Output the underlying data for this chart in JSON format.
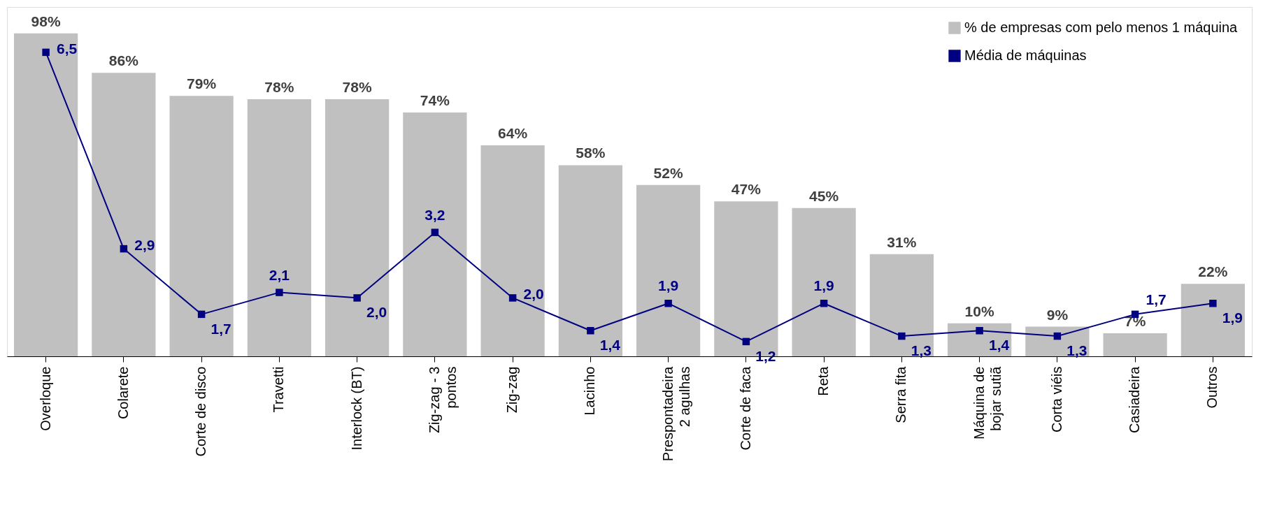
{
  "chart_data": {
    "type": "bar",
    "categories": [
      "Overloque",
      "Colarete",
      "Corte de disco",
      "Travetti",
      "Interlock (BT)",
      "Zig-zag - 3\npontos",
      "Zig-zag",
      "Lacinho",
      "Prespontadeira\n2 agulhas",
      "Corte de faca",
      "Reta",
      "Serra fita",
      "Máquina de\nbojar sutiã",
      "Corta viéis",
      "Casiadeira",
      "Outros"
    ],
    "series": [
      {
        "name": "% de empresas com pelo menos 1 máquina",
        "color": "#c0c0c0",
        "values": [
          98,
          86,
          79,
          78,
          78,
          74,
          64,
          58,
          52,
          47,
          45,
          31,
          10,
          9,
          7,
          22
        ],
        "value_labels": [
          "98%",
          "86%",
          "79%",
          "78%",
          "78%",
          "74%",
          "64%",
          "58%",
          "52%",
          "47%",
          "45%",
          "31%",
          "10%",
          "9%",
          "7%",
          "22%"
        ]
      },
      {
        "name": "Média de máquinas",
        "type": "line",
        "axis": "y2",
        "color": "#000080",
        "values": [
          6.5,
          2.9,
          1.7,
          2.1,
          2.0,
          3.2,
          2.0,
          1.4,
          1.9,
          1.2,
          1.9,
          1.3,
          1.4,
          1.3,
          1.7,
          1.9
        ],
        "value_labels": [
          "6,5",
          "2,9",
          "1,7",
          "2,1",
          "2,0",
          "3,2",
          "2,0",
          "1,4",
          "1,9",
          "1,2",
          "1,9",
          "1,3",
          "1,4",
          "1,3",
          "1,7",
          "1,9"
        ]
      }
    ],
    "ylim": [
      0,
      106
    ],
    "y2lim": [
      0.93,
      7.33
    ],
    "tick_labels": "x",
    "grid": false,
    "legend": "top right",
    "marker": "square",
    "line_style": "solid"
  }
}
